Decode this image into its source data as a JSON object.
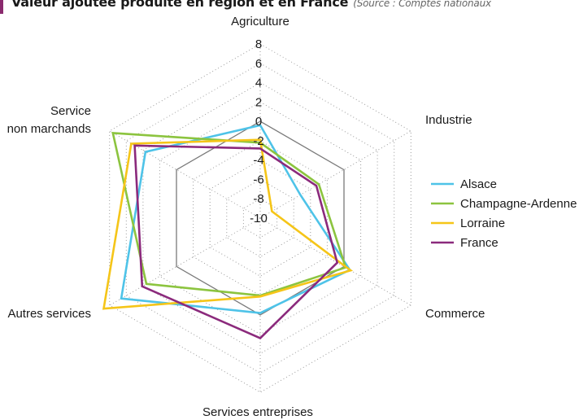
{
  "header": {
    "title": "Valeur ajoutée produite en région et en France",
    "source": "(Source : Comptes nationaux"
  },
  "chart_data": {
    "type": "radar",
    "categories": [
      "Agriculture",
      "Industrie",
      "Commerce",
      "Services entreprises",
      "Autres services",
      "Service non marchands"
    ],
    "category_lines": [
      [
        "Agriculture"
      ],
      [
        "Industrie"
      ],
      [
        "Commerce"
      ],
      [
        "Services entreprises"
      ],
      [
        "Autres services"
      ],
      [
        "Service",
        "non marchands"
      ]
    ],
    "r_min": -10,
    "r_max": 8,
    "ticks": [
      8,
      6,
      4,
      2,
      0,
      -2,
      -4,
      -6,
      -8,
      -10
    ],
    "zero_ring": 0,
    "series": [
      {
        "name": "Alsace",
        "color": "#4ec3e8",
        "values": [
          -0.4,
          -5.2,
          0.7,
          -0.2,
          6.6,
          3.7
        ]
      },
      {
        "name": "Champagne-Ardenne",
        "color": "#8cc43f",
        "values": [
          -2.2,
          -3.0,
          0.2,
          -2.0,
          3.6,
          7.6
        ]
      },
      {
        "name": "Lorraine",
        "color": "#f5c518",
        "values": [
          -1.9,
          -8.6,
          0.8,
          -1.9,
          8.7,
          5.4
        ]
      },
      {
        "name": "France",
        "color": "#8b2a7c",
        "values": [
          -2.8,
          -3.3,
          -0.8,
          2.4,
          4.1,
          5.0
        ]
      }
    ],
    "legend": "right",
    "grid": true
  }
}
